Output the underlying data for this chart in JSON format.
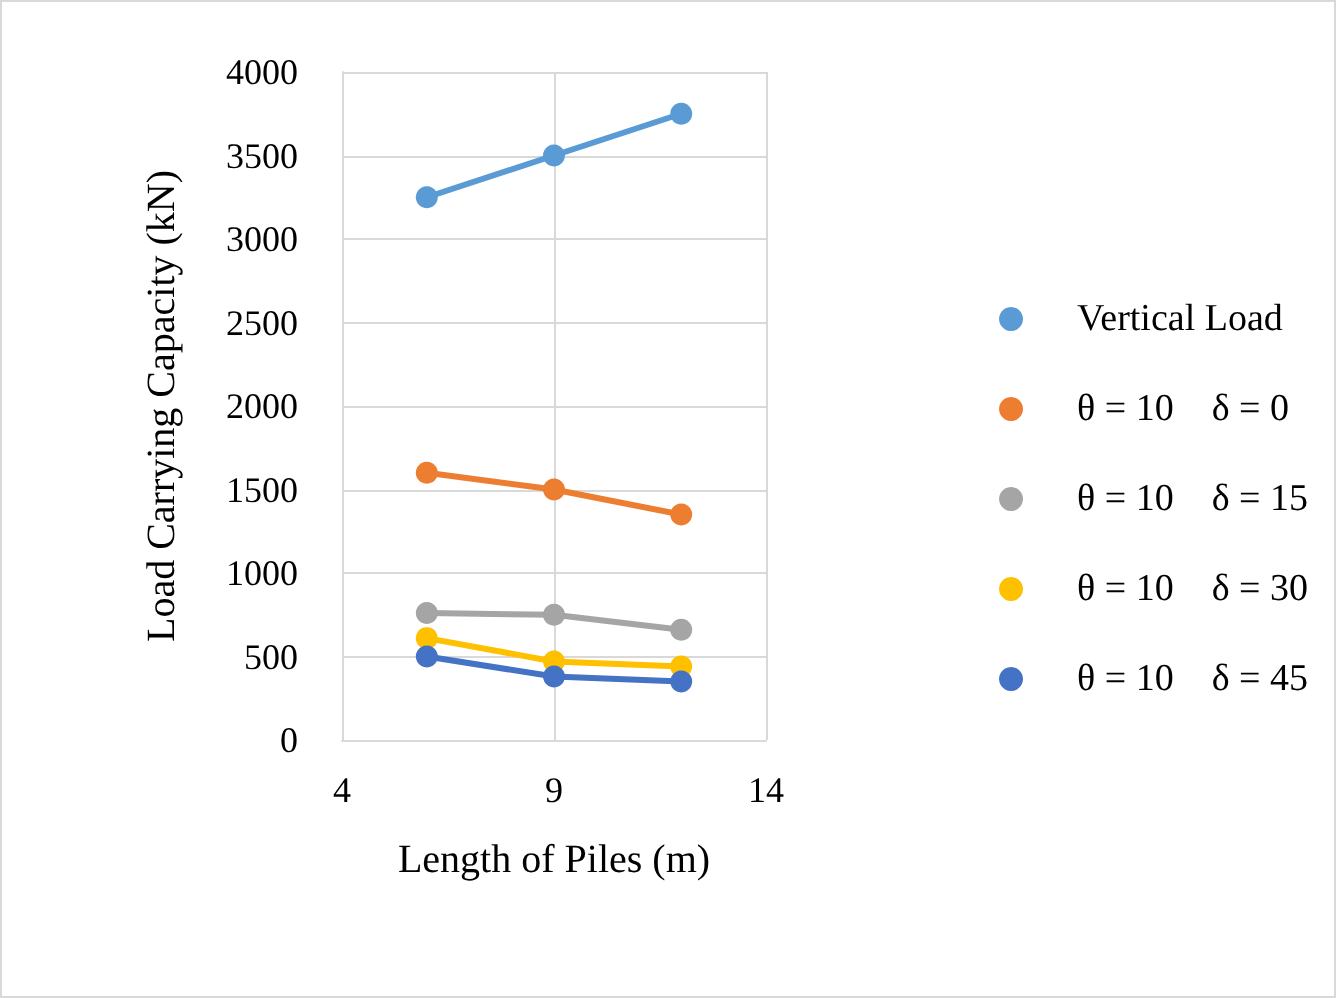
{
  "chart_data": {
    "type": "line",
    "xlabel": "Length of Piles (m)",
    "ylabel": "Load Carrying Capacity (kN)",
    "x": [
      6,
      9,
      12
    ],
    "xlim": [
      4,
      14
    ],
    "xticks": [
      4,
      9,
      14
    ],
    "ylim": [
      0,
      4000
    ],
    "yticks": [
      0,
      500,
      1000,
      1500,
      2000,
      2500,
      3000,
      3500,
      4000
    ],
    "grid": true,
    "legend": "right",
    "marker": "circle",
    "line_style": "solid",
    "series": [
      {
        "name": "Vertical Load",
        "color": "#5b9bd5",
        "values": [
          3250,
          3500,
          3750
        ]
      },
      {
        "name": "θ = 10    δ = 0",
        "color": "#ed7d31",
        "values": [
          1600,
          1500,
          1350
        ]
      },
      {
        "name": "θ = 10    δ = 15",
        "color": "#a5a5a5",
        "values": [
          760,
          750,
          660
        ]
      },
      {
        "name": "θ = 10    δ = 30",
        "color": "#ffc000",
        "values": [
          610,
          470,
          440
        ]
      },
      {
        "name": "θ = 10    δ = 45",
        "color": "#4472c4",
        "values": [
          500,
          380,
          350
        ]
      }
    ]
  }
}
